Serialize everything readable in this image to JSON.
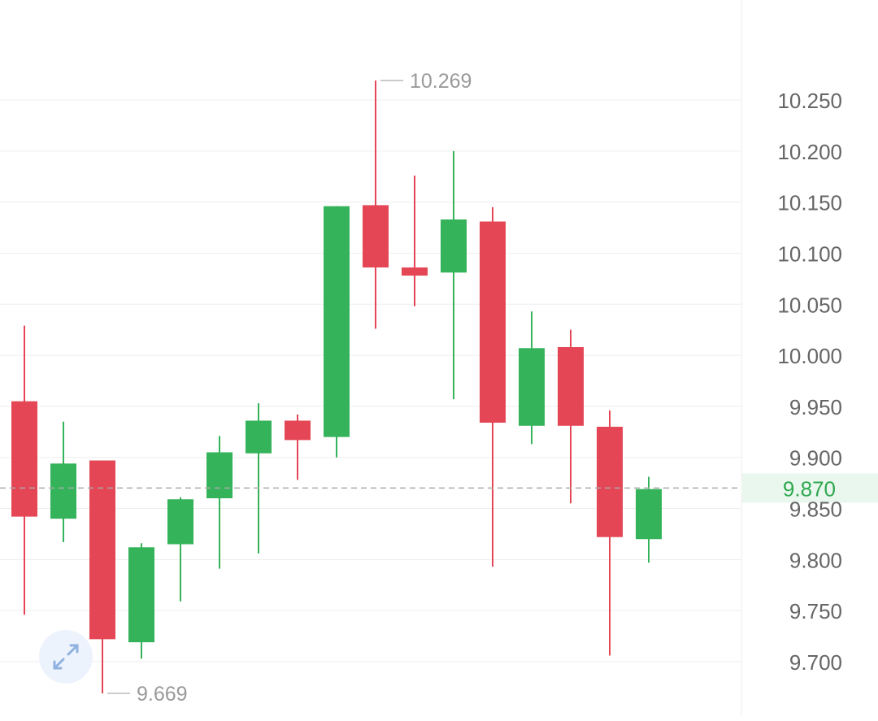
{
  "chart_data": {
    "type": "candlestick",
    "y_ticks": [
      "10.250",
      "10.200",
      "10.150",
      "10.100",
      "10.050",
      "10.000",
      "9.950",
      "9.900",
      "9.850",
      "9.800",
      "9.750",
      "9.700"
    ],
    "ylim": [
      9.66,
      10.35
    ],
    "candles": [
      {
        "open": 9.955,
        "high": 10.029,
        "low": 9.746,
        "close": 9.842
      },
      {
        "open": 9.84,
        "high": 9.935,
        "low": 9.817,
        "close": 9.894
      },
      {
        "open": 9.897,
        "high": 9.897,
        "low": 9.669,
        "close": 9.722
      },
      {
        "open": 9.719,
        "high": 9.816,
        "low": 9.703,
        "close": 9.812
      },
      {
        "open": 9.815,
        "high": 9.861,
        "low": 9.759,
        "close": 9.859
      },
      {
        "open": 9.86,
        "high": 9.921,
        "low": 9.791,
        "close": 9.905
      },
      {
        "open": 9.904,
        "high": 9.953,
        "low": 9.806,
        "close": 9.936
      },
      {
        "open": 9.936,
        "high": 9.942,
        "low": 9.878,
        "close": 9.917
      },
      {
        "open": 9.92,
        "high": 10.146,
        "low": 9.9,
        "close": 10.146
      },
      {
        "open": 10.147,
        "high": 10.269,
        "low": 10.026,
        "close": 10.086
      },
      {
        "open": 10.086,
        "high": 10.176,
        "low": 10.048,
        "close": 10.078
      },
      {
        "open": 10.081,
        "high": 10.2,
        "low": 9.957,
        "close": 10.133
      },
      {
        "open": 10.131,
        "high": 10.145,
        "low": 9.793,
        "close": 9.934
      },
      {
        "open": 9.931,
        "high": 10.043,
        "low": 9.913,
        "close": 10.007
      },
      {
        "open": 10.008,
        "high": 10.025,
        "low": 9.855,
        "close": 9.931
      },
      {
        "open": 9.93,
        "high": 9.946,
        "low": 9.706,
        "close": 9.822
      },
      {
        "open": 9.82,
        "high": 9.881,
        "low": 9.797,
        "close": 9.869
      }
    ],
    "annotations": {
      "high": {
        "label": "10.269",
        "value": 10.269,
        "candle_index": 9
      },
      "low": {
        "label": "9.669",
        "value": 9.669,
        "candle_index": 2
      }
    },
    "current_price": {
      "label": "9.870",
      "value": 9.87
    },
    "colors": {
      "up": "#34b35a",
      "down": "#e44655",
      "current_price_text": "#2fa84f",
      "current_price_bg": "#eaf7ee",
      "axis_text": "#666666",
      "annotation_text": "#9a9a9a",
      "grid": "#ededed"
    },
    "grid": true
  },
  "controls": {
    "expand_icon": "expand-arrows-icon"
  }
}
